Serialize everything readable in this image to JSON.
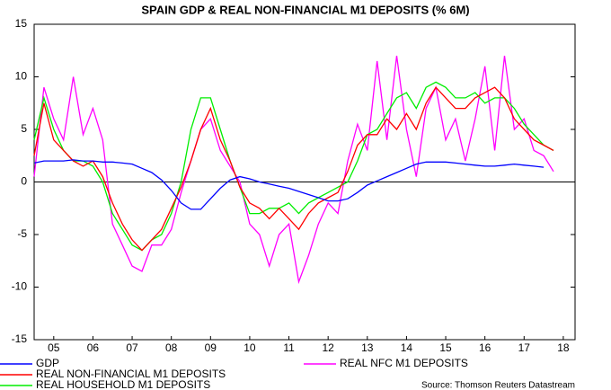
{
  "chart_data": {
    "type": "line",
    "title": "SPAIN GDP & REAL NON-FINANCIAL M1 DEPOSITS (% 6M)",
    "source": "Source: Thomson Reuters Datastream",
    "x": [
      2005,
      2005.25,
      2005.5,
      2005.75,
      2006,
      2006.25,
      2006.5,
      2006.75,
      2007,
      2007.25,
      2007.5,
      2007.75,
      2008,
      2008.25,
      2008.5,
      2008.75,
      2009,
      2009.25,
      2009.5,
      2009.75,
      2010,
      2010.25,
      2010.5,
      2010.75,
      2011,
      2011.25,
      2011.5,
      2011.75,
      2012,
      2012.25,
      2012.5,
      2012.75,
      2013,
      2013.25,
      2013.5,
      2013.75,
      2014,
      2014.25,
      2014.5,
      2014.75,
      2015,
      2015.25,
      2015.5,
      2015.75,
      2016,
      2016.25,
      2016.5,
      2016.75,
      2017,
      2017.25,
      2017.5,
      2017.75,
      2018,
      2018.25
    ],
    "series": [
      {
        "name": "GDP",
        "color": "#0000ff",
        "values": [
          1.8,
          2.0,
          2.0,
          2.0,
          2.1,
          2.0,
          2.0,
          1.9,
          1.9,
          1.8,
          1.7,
          1.3,
          0.9,
          0.2,
          -0.8,
          -2.0,
          -2.6,
          -2.6,
          -1.6,
          -0.6,
          0.2,
          0.5,
          0.3,
          0.0,
          -0.2,
          -0.4,
          -0.6,
          -0.9,
          -1.2,
          -1.5,
          -1.8,
          -1.8,
          -1.6,
          -1.0,
          -0.3,
          0.1,
          0.5,
          0.9,
          1.3,
          1.7,
          1.9,
          1.9,
          1.9,
          1.8,
          1.7,
          1.6,
          1.5,
          1.5,
          1.6,
          1.7,
          1.6,
          1.5,
          1.4,
          null
        ]
      },
      {
        "name": "REAL NON-FINANCIAL M1 DEPOSITS",
        "color": "#ff0000",
        "values": [
          2.5,
          7.5,
          4,
          3,
          2,
          1.5,
          2,
          0.5,
          -2,
          -4,
          -5.5,
          -6.5,
          -5.5,
          -4.5,
          -2.5,
          -0.5,
          2,
          5,
          7,
          4,
          2,
          -0.5,
          -2,
          -2.5,
          -3.5,
          -2.5,
          -3.5,
          -4.5,
          -3,
          -2,
          -1.5,
          -1,
          1,
          3.5,
          4.5,
          4.5,
          6,
          5,
          6.5,
          5,
          7.5,
          9,
          8,
          7,
          7,
          8,
          8.5,
          9,
          8,
          6,
          5,
          4,
          3.5,
          3
        ]
      },
      {
        "name": "REAL HOUSEHOLD M1 DEPOSITS",
        "color": "#00ee00",
        "values": [
          4,
          8,
          5,
          3,
          2,
          2,
          1.5,
          0,
          -3,
          -4.5,
          -6,
          -6.5,
          -5.5,
          -5,
          -3,
          0,
          5,
          8,
          8,
          5,
          2,
          -0.5,
          -3,
          -3,
          -2.5,
          -2.5,
          -2,
          -3,
          -2,
          -1.5,
          -1,
          -0.5,
          0,
          2,
          4.5,
          5,
          6.5,
          8,
          8.5,
          7,
          9,
          9.5,
          9,
          8,
          8,
          8.5,
          7.5,
          8,
          8,
          7,
          5.5,
          4.5,
          3.5,
          3
        ]
      },
      {
        "name": "REAL NFC M1 DEPOSITS",
        "color": "#ff00ff",
        "values": [
          0.5,
          9,
          6,
          4,
          10,
          4.5,
          7,
          4,
          -4,
          -6,
          -8,
          -8.5,
          -6,
          -6,
          -4.5,
          -1,
          2,
          5,
          6,
          3,
          1.5,
          0,
          -4,
          -5,
          -8,
          -5,
          -4,
          -9.5,
          -7,
          -4,
          -2,
          -3,
          2,
          5.5,
          3,
          11.5,
          4,
          12,
          5,
          0.5,
          7,
          9,
          4,
          6,
          2,
          6,
          11,
          3,
          12,
          5,
          6,
          3,
          2.5,
          1
        ]
      }
    ],
    "xlim": [
      2005,
      2018.8
    ],
    "ylim": [
      -15,
      15
    ],
    "xticks": [
      {
        "value": 2005.5,
        "label": "05"
      },
      {
        "value": 2006.5,
        "label": "06"
      },
      {
        "value": 2007.5,
        "label": "07"
      },
      {
        "value": 2008.5,
        "label": "08"
      },
      {
        "value": 2009.5,
        "label": "09"
      },
      {
        "value": 2010.5,
        "label": "10"
      },
      {
        "value": 2011.5,
        "label": "11"
      },
      {
        "value": 2012.5,
        "label": "12"
      },
      {
        "value": 2013.5,
        "label": "13"
      },
      {
        "value": 2014.5,
        "label": "14"
      },
      {
        "value": 2015.5,
        "label": "15"
      },
      {
        "value": 2016.5,
        "label": "16"
      },
      {
        "value": 2017.5,
        "label": "17"
      },
      {
        "value": 2018.5,
        "label": "18"
      }
    ],
    "yticks": [
      -15,
      -10,
      -5,
      0,
      5,
      10,
      15
    ]
  }
}
